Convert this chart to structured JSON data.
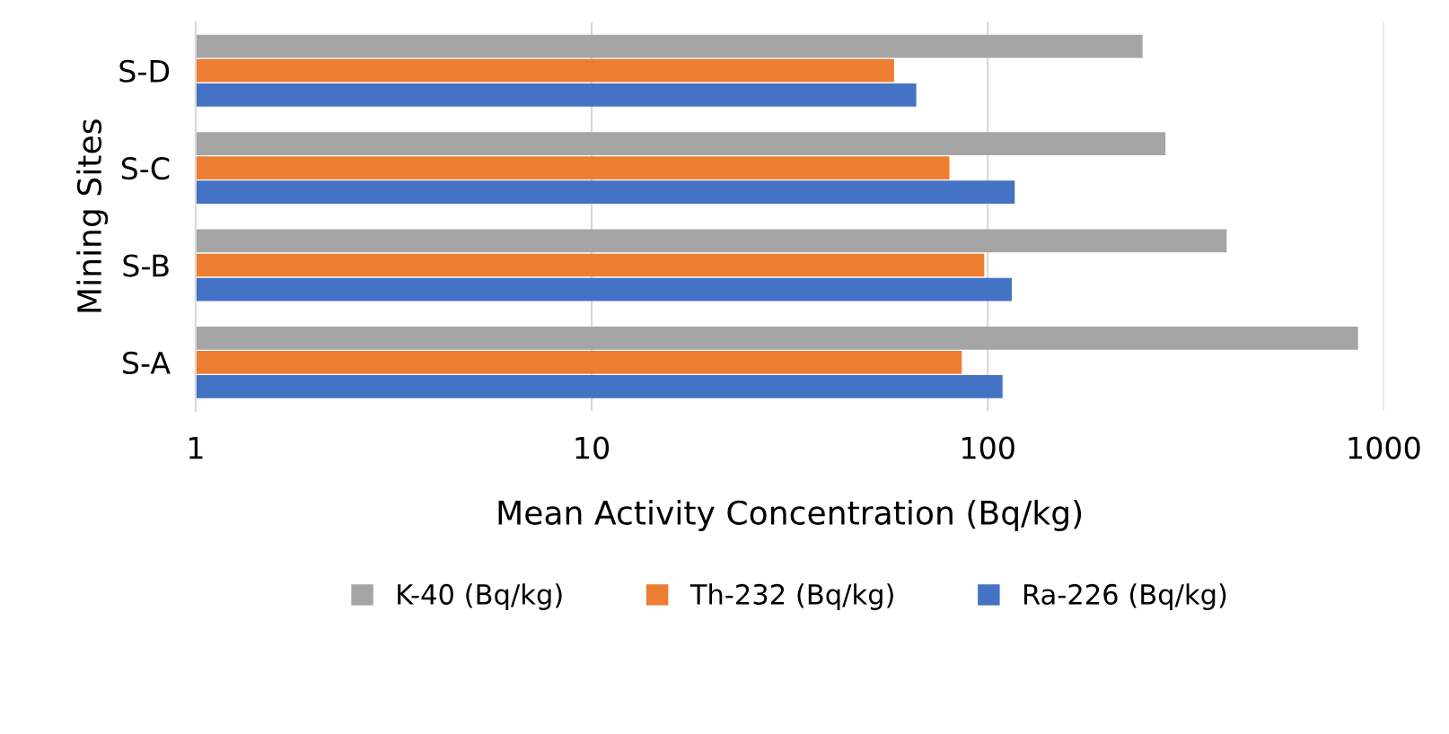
{
  "chart_data": {
    "type": "bar",
    "orientation": "horizontal",
    "xlabel": "Mean Activity Concentration (Bq/kg)",
    "ylabel": "Mining Sites",
    "categories": [
      "S-D",
      "S-C",
      "S-B",
      "S-A"
    ],
    "series": [
      {
        "name": "K-40 (Bq/kg)",
        "color": "#a5a5a5",
        "values": [
          245,
          280,
          400,
          860
        ]
      },
      {
        "name": "Th-232 (Bq/kg)",
        "color": "#ed7d31",
        "values": [
          57,
          79,
          97,
          85
        ]
      },
      {
        "name": "Ra-226 (Bq/kg)",
        "color": "#4472c4",
        "values": [
          65,
          116,
          114,
          108
        ]
      }
    ],
    "log": "x",
    "xlim": [
      1,
      1000
    ],
    "xticks": [
      1,
      10,
      100,
      1000
    ],
    "grid": "x",
    "legend": "bottom"
  }
}
